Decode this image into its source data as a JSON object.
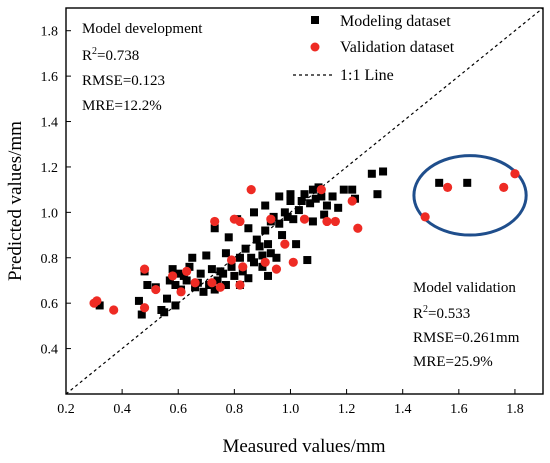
{
  "chart_data": {
    "type": "scatter",
    "xlabel": "Measured values/mm",
    "ylabel": "Predicted values/mm",
    "xlim": [
      0.2,
      1.9
    ],
    "ylim": [
      0.2,
      1.9
    ],
    "xticks": [
      "0.2",
      "0.4",
      "0.6",
      "0.8",
      "1.0",
      "1.2",
      "1.4",
      "1.6",
      "1.8"
    ],
    "yticks": [
      "0.4",
      "0.6",
      "0.8",
      "1.0",
      "1.2",
      "1.4",
      "1.6",
      "1.8"
    ],
    "legend_position": "top-right",
    "colors": {
      "modeling": "#000000",
      "validation": "#ee2b24",
      "ellipse": "#1f4e8c"
    },
    "annotations": {
      "development": {
        "title": "Model development",
        "r2": "0.738",
        "rmse": "RMSE=0.123",
        "mre": "MRE=12.2%"
      },
      "validation": {
        "title": "Model validation",
        "r2": "0.533",
        "rmse": "RMSE=0.261mm",
        "mre": "MRE=25.9%"
      }
    },
    "series": [
      {
        "name": "Modeling dataset",
        "marker": "square",
        "points": [
          [
            0.32,
            0.59
          ],
          [
            0.46,
            0.61
          ],
          [
            0.47,
            0.55
          ],
          [
            0.48,
            0.74
          ],
          [
            0.49,
            0.68
          ],
          [
            0.52,
            0.67
          ],
          [
            0.54,
            0.57
          ],
          [
            0.55,
            0.56
          ],
          [
            0.56,
            0.62
          ],
          [
            0.57,
            0.7
          ],
          [
            0.58,
            0.75
          ],
          [
            0.59,
            0.59
          ],
          [
            0.59,
            0.68
          ],
          [
            0.6,
            0.73
          ],
          [
            0.61,
            0.66
          ],
          [
            0.62,
            0.72
          ],
          [
            0.63,
            0.7
          ],
          [
            0.64,
            0.76
          ],
          [
            0.65,
            0.8
          ],
          [
            0.66,
            0.67
          ],
          [
            0.67,
            0.69
          ],
          [
            0.68,
            0.73
          ],
          [
            0.69,
            0.65
          ],
          [
            0.7,
            0.81
          ],
          [
            0.71,
            0.68
          ],
          [
            0.72,
            0.75
          ],
          [
            0.73,
            0.66
          ],
          [
            0.73,
            0.93
          ],
          [
            0.74,
            0.7
          ],
          [
            0.75,
            0.74
          ],
          [
            0.76,
            0.73
          ],
          [
            0.77,
            0.68
          ],
          [
            0.77,
            0.82
          ],
          [
            0.78,
            0.89
          ],
          [
            0.79,
            0.76
          ],
          [
            0.8,
            0.72
          ],
          [
            0.81,
            0.97
          ],
          [
            0.82,
            0.8
          ],
          [
            0.82,
            0.68
          ],
          [
            0.83,
            0.74
          ],
          [
            0.84,
            0.84
          ],
          [
            0.85,
            0.93
          ],
          [
            0.85,
            0.71
          ],
          [
            0.86,
            0.8
          ],
          [
            0.87,
            0.78
          ],
          [
            0.87,
            1.0
          ],
          [
            0.88,
            0.88
          ],
          [
            0.89,
            0.85
          ],
          [
            0.9,
            0.76
          ],
          [
            0.9,
            0.81
          ],
          [
            0.91,
            0.92
          ],
          [
            0.91,
            1.03
          ],
          [
            0.92,
            0.72
          ],
          [
            0.92,
            0.86
          ],
          [
            0.93,
            0.96
          ],
          [
            0.93,
            0.82
          ],
          [
            0.94,
            0.98
          ],
          [
            0.95,
            0.8
          ],
          [
            0.96,
            0.95
          ],
          [
            0.96,
            1.07
          ],
          [
            0.97,
            0.9
          ],
          [
            0.98,
            1.0
          ],
          [
            0.99,
            0.98
          ],
          [
            1.0,
            1.05
          ],
          [
            1.0,
            1.08
          ],
          [
            1.01,
            0.97
          ],
          [
            1.02,
            0.86
          ],
          [
            1.03,
            1.01
          ],
          [
            1.04,
            1.05
          ],
          [
            1.05,
            1.08
          ],
          [
            1.06,
            0.79
          ],
          [
            1.07,
            1.04
          ],
          [
            1.08,
            1.1
          ],
          [
            1.08,
            0.96
          ],
          [
            1.09,
            1.06
          ],
          [
            1.1,
            1.11
          ],
          [
            1.11,
            1.07
          ],
          [
            1.12,
            0.99
          ],
          [
            1.13,
            1.03
          ],
          [
            1.15,
            1.07
          ],
          [
            1.17,
            1.02
          ],
          [
            1.19,
            1.1
          ],
          [
            1.22,
            1.1
          ],
          [
            1.23,
            1.06
          ],
          [
            1.29,
            1.17
          ],
          [
            1.31,
            1.08
          ],
          [
            1.33,
            1.18
          ],
          [
            1.53,
            1.13
          ],
          [
            1.63,
            1.13
          ]
        ]
      },
      {
        "name": "Validation dataset",
        "marker": "circle",
        "points": [
          [
            0.3,
            0.6
          ],
          [
            0.31,
            0.61
          ],
          [
            0.37,
            0.57
          ],
          [
            0.48,
            0.75
          ],
          [
            0.48,
            0.58
          ],
          [
            0.52,
            0.66
          ],
          [
            0.58,
            0.72
          ],
          [
            0.61,
            0.65
          ],
          [
            0.63,
            0.74
          ],
          [
            0.66,
            0.69
          ],
          [
            0.72,
            0.69
          ],
          [
            0.73,
            0.96
          ],
          [
            0.75,
            0.67
          ],
          [
            0.79,
            0.79
          ],
          [
            0.8,
            0.97
          ],
          [
            0.82,
            0.96
          ],
          [
            0.82,
            0.68
          ],
          [
            0.83,
            0.76
          ],
          [
            0.86,
            1.1
          ],
          [
            0.91,
            0.78
          ],
          [
            0.93,
            0.97
          ],
          [
            0.95,
            0.75
          ],
          [
            0.98,
            0.86
          ],
          [
            1.01,
            0.78
          ],
          [
            1.05,
            0.97
          ],
          [
            1.11,
            1.1
          ],
          [
            1.13,
            0.96
          ],
          [
            1.16,
            0.96
          ],
          [
            1.22,
            1.05
          ],
          [
            1.24,
            0.93
          ],
          [
            1.48,
            0.98
          ],
          [
            1.56,
            1.11
          ],
          [
            1.76,
            1.11
          ],
          [
            1.8,
            1.17
          ]
        ]
      },
      {
        "name": "1:1 Line",
        "type": "line",
        "x": [
          0.2,
          1.9
        ],
        "y": [
          0.2,
          1.9
        ]
      }
    ]
  }
}
